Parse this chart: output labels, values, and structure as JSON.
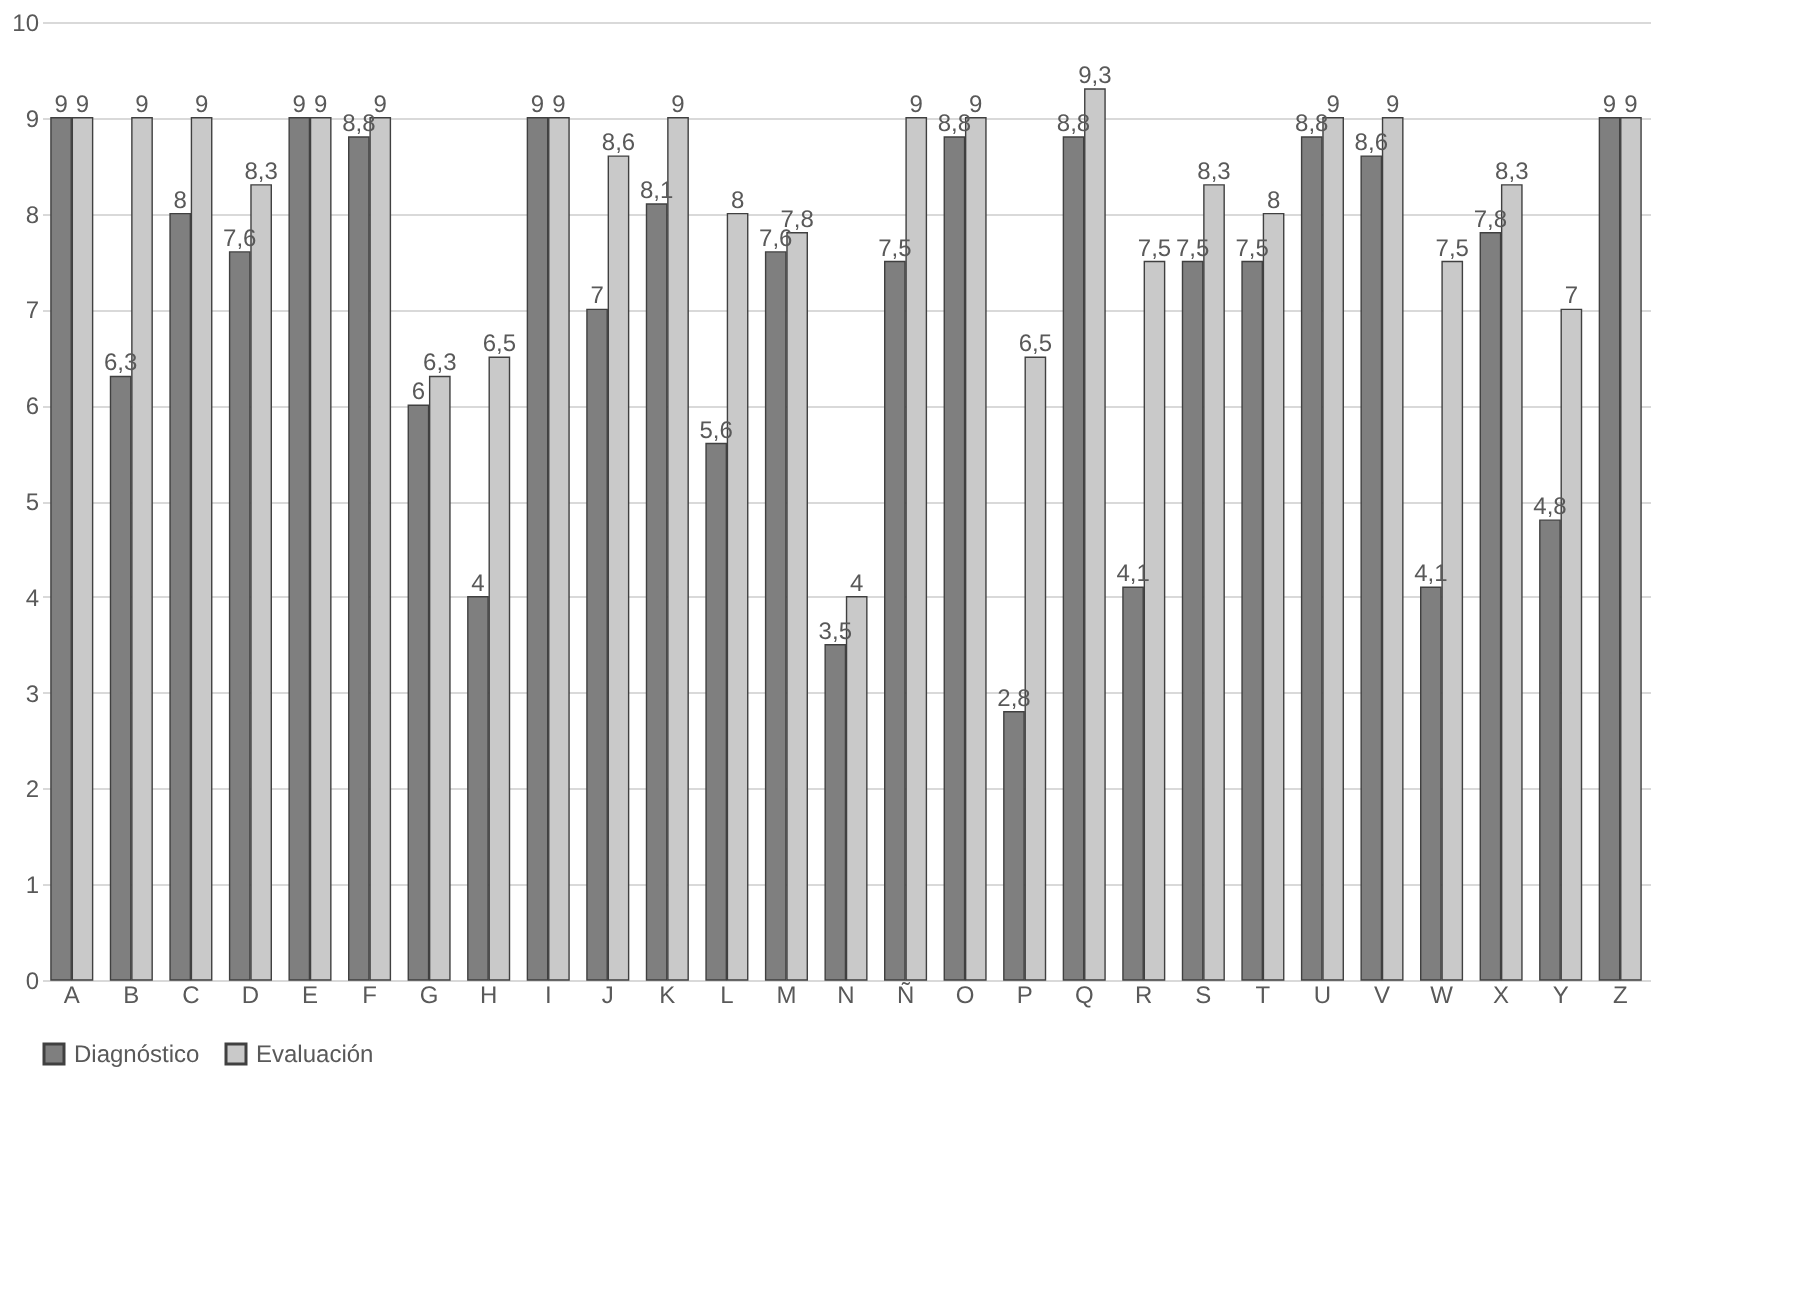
{
  "chart_data": {
    "type": "bar",
    "categories": [
      "A",
      "B",
      "C",
      "D",
      "E",
      "F",
      "G",
      "H",
      "I",
      "J",
      "K",
      "L",
      "M",
      "N",
      "Ñ",
      "O",
      "P",
      "Q",
      "R",
      "S",
      "T",
      "U",
      "V",
      "W",
      "X",
      "Y",
      "Z"
    ],
    "series": [
      {
        "name": "Diagnóstico",
        "color": "#7f7f7f",
        "values": [
          9,
          6.3,
          8,
          7.6,
          9,
          8.8,
          6,
          4,
          9,
          7,
          8.1,
          5.6,
          7.6,
          3.5,
          7.5,
          8.8,
          2.8,
          8.8,
          4.1,
          7.5,
          7.5,
          8.8,
          8.6,
          4.1,
          7.8,
          4.8,
          9
        ],
        "value_labels": [
          "9",
          "6,3",
          "8",
          "7,6",
          "9",
          "8,8",
          "6",
          "4",
          "9",
          "7",
          "8,1",
          "5,6",
          "7,6",
          "3,5",
          "7,5",
          "8,8",
          "2,8",
          "8,8",
          "4,1",
          "7,5",
          "7,5",
          "8,8",
          "8,6",
          "4,1",
          "7,8",
          "4,8",
          "9"
        ]
      },
      {
        "name": "Evaluación",
        "color": "#c9c9c9",
        "values": [
          9,
          9,
          9,
          8.3,
          9,
          9,
          6.3,
          6.5,
          9,
          8.6,
          9,
          8,
          7.8,
          4,
          9,
          9,
          6.5,
          9.3,
          7.5,
          8.3,
          8,
          9,
          9,
          7.5,
          8.3,
          7,
          9
        ],
        "value_labels": [
          "9",
          "9",
          "9",
          "8,3",
          "9",
          "9",
          "6,3",
          "6,5",
          "9",
          "8,6",
          "9",
          "8",
          "7,8",
          "4",
          "9",
          "9",
          "6,5",
          "9,3",
          "7,5",
          "8,3",
          "8",
          "9",
          "9",
          "7,5",
          "8,3",
          "7",
          "9"
        ]
      }
    ],
    "ylim": [
      0,
      10
    ],
    "yticks": [
      0,
      1,
      2,
      3,
      4,
      5,
      6,
      7,
      8,
      9,
      10
    ],
    "grid": "y",
    "legend": "bottom"
  }
}
